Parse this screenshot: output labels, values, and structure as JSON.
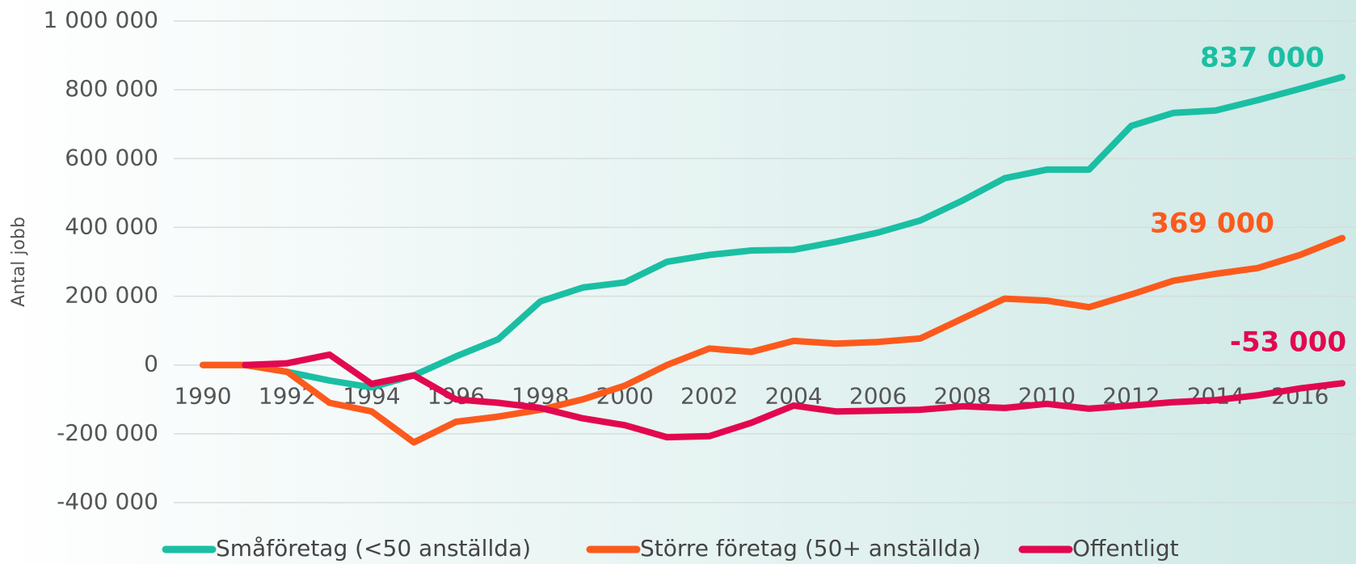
{
  "chart_data": {
    "type": "line",
    "y_label": "Antal jobb",
    "x": [
      1990,
      1991,
      1992,
      1993,
      1994,
      1995,
      1996,
      1997,
      1998,
      1999,
      2000,
      2001,
      2002,
      2003,
      2004,
      2005,
      2006,
      2007,
      2008,
      2009,
      2010,
      2011,
      2012,
      2013,
      2014,
      2015,
      2016,
      2017
    ],
    "series": [
      {
        "name": "Småföretag (<50 anställda)",
        "color": "#1abfa3",
        "values": [
          0,
          0,
          -20000,
          -45000,
          -65000,
          -30000,
          25000,
          75000,
          185000,
          225000,
          240000,
          300000,
          320000,
          333000,
          335000,
          358000,
          385000,
          420000,
          478000,
          543000,
          568000,
          568000,
          695000,
          733000,
          740000,
          770000,
          803000,
          837000
        ]
      },
      {
        "name": "Större företag (50+ anställda)",
        "color": "#fc5a1c",
        "values": [
          0,
          0,
          -20000,
          -110000,
          -135000,
          -225000,
          -165000,
          -150000,
          -130000,
          -100000,
          -60000,
          0,
          48000,
          38000,
          70000,
          62000,
          67000,
          77000,
          135000,
          193000,
          187000,
          168000,
          205000,
          245000,
          265000,
          282000,
          320000,
          369000
        ]
      },
      {
        "name": "Offentligt",
        "color": "#e2084f",
        "values": [
          null,
          0,
          5000,
          30000,
          -55000,
          -30000,
          -100000,
          -110000,
          -125000,
          -155000,
          -175000,
          -210000,
          -207000,
          -168000,
          -118000,
          -135000,
          -133000,
          -130000,
          -120000,
          -125000,
          -113000,
          -127000,
          -118000,
          -108000,
          -102000,
          -88000,
          -68000,
          -53000
        ]
      }
    ],
    "annotations": [
      {
        "text": "837 000",
        "color": "#1abfa3"
      },
      {
        "text": "369 000",
        "color": "#fc5a1c"
      },
      {
        "text": "-53 000",
        "color": "#e2084f"
      }
    ],
    "xlim": [
      1990,
      2017
    ],
    "xticks": [
      1990,
      1992,
      1994,
      1996,
      1998,
      2000,
      2002,
      2004,
      2006,
      2008,
      2010,
      2012,
      2014,
      2016
    ],
    "ylim": [
      -400000,
      1000000
    ],
    "yticks": [
      {
        "value": -400000,
        "label": "-400 000"
      },
      {
        "value": -200000,
        "label": "-200 000"
      },
      0,
      {
        "value": 200000,
        "label": "200 000"
      },
      {
        "value": 400000,
        "label": "400 000"
      },
      {
        "value": 600000,
        "label": "600 000"
      },
      {
        "value": 800000,
        "label": "800 000"
      },
      {
        "value": 1000000,
        "label": "1 000 000"
      }
    ],
    "grid": true,
    "legend": "bottom"
  }
}
